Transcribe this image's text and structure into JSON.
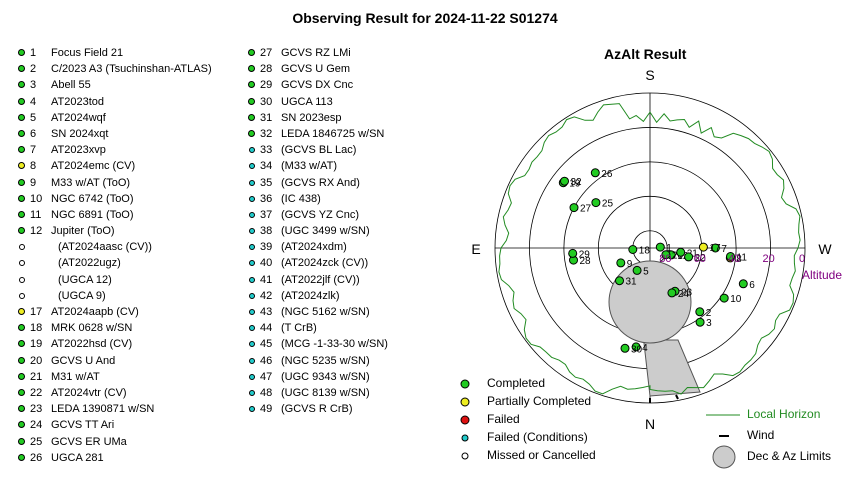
{
  "title": "Observing Result for 2024-11-22 S01274",
  "status_colors": {
    "completed": "#22cc22",
    "partial": "#eeee22",
    "failed": "#dd1111",
    "failed_conditions": "#22cccc",
    "missed": "#ffffff"
  },
  "targets_col1": [
    {
      "num": "1",
      "name": "Focus Field 21",
      "status": "completed"
    },
    {
      "num": "2",
      "name": "C/2023 A3 (Tsuchinshan-ATLAS)",
      "status": "completed"
    },
    {
      "num": "3",
      "name": "Abell 55",
      "status": "completed"
    },
    {
      "num": "4",
      "name": "AT2023tod",
      "status": "completed"
    },
    {
      "num": "5",
      "name": "AT2024wqf",
      "status": "completed"
    },
    {
      "num": "6",
      "name": "SN 2024xqt",
      "status": "completed"
    },
    {
      "num": "7",
      "name": "AT2023xvp",
      "status": "completed"
    },
    {
      "num": "8",
      "name": "AT2024emc (CV)",
      "status": "partial"
    },
    {
      "num": "9",
      "name": "M33 w/AT (ToO)",
      "status": "completed"
    },
    {
      "num": "10",
      "name": "NGC 6742 (ToO)",
      "status": "completed"
    },
    {
      "num": "11",
      "name": "NGC 6891 (ToO)",
      "status": "completed"
    },
    {
      "num": "12",
      "name": "Jupiter (ToO)",
      "status": "completed"
    },
    {
      "num": "",
      "name": "(AT2024aasc (CV))",
      "status": "missed"
    },
    {
      "num": "",
      "name": "(AT2022ugz)",
      "status": "missed"
    },
    {
      "num": "",
      "name": "(UGCA 12)",
      "status": "missed"
    },
    {
      "num": "",
      "name": "(UGCA 9)",
      "status": "missed"
    },
    {
      "num": "17",
      "name": "AT2024aapb (CV)",
      "status": "partial"
    },
    {
      "num": "18",
      "name": "MRK 0628 w/SN",
      "status": "completed"
    },
    {
      "num": "19",
      "name": "AT2022hsd (CV)",
      "status": "completed"
    },
    {
      "num": "20",
      "name": "GCVS U And",
      "status": "completed"
    },
    {
      "num": "21",
      "name": "M31 w/AT",
      "status": "completed"
    },
    {
      "num": "22",
      "name": "AT2024vtr (CV)",
      "status": "completed"
    },
    {
      "num": "23",
      "name": "LEDA 1390871 w/SN",
      "status": "completed"
    },
    {
      "num": "24",
      "name": "GCVS TT Ari",
      "status": "completed"
    },
    {
      "num": "25",
      "name": "GCVS ER UMa",
      "status": "completed"
    },
    {
      "num": "26",
      "name": "UGCA 281",
      "status": "completed"
    }
  ],
  "targets_col2": [
    {
      "num": "27",
      "name": "GCVS RZ LMi",
      "status": "completed"
    },
    {
      "num": "28",
      "name": "GCVS U Gem",
      "status": "completed"
    },
    {
      "num": "29",
      "name": "GCVS DX Cnc",
      "status": "completed"
    },
    {
      "num": "30",
      "name": "UGCA 113",
      "status": "completed"
    },
    {
      "num": "31",
      "name": "SN 2023esp",
      "status": "completed"
    },
    {
      "num": "32",
      "name": "LEDA 1846725 w/SN",
      "status": "completed"
    },
    {
      "num": "33",
      "name": "(GCVS BL Lac)",
      "status": "failed_conditions"
    },
    {
      "num": "34",
      "name": "(M33 w/AT)",
      "status": "failed_conditions"
    },
    {
      "num": "35",
      "name": "(GCVS RX And)",
      "status": "failed_conditions"
    },
    {
      "num": "36",
      "name": "(IC 438)",
      "status": "failed_conditions"
    },
    {
      "num": "37",
      "name": "(GCVS YZ Cnc)",
      "status": "failed_conditions"
    },
    {
      "num": "38",
      "name": "(UGC 3499 w/SN)",
      "status": "failed_conditions"
    },
    {
      "num": "39",
      "name": "(AT2024xdm)",
      "status": "failed_conditions"
    },
    {
      "num": "40",
      "name": "(AT2024zck (CV))",
      "status": "failed_conditions"
    },
    {
      "num": "41",
      "name": "(AT2022jlf (CV))",
      "status": "failed_conditions"
    },
    {
      "num": "42",
      "name": "(AT2024zlk)",
      "status": "failed_conditions"
    },
    {
      "num": "43",
      "name": "(NGC 5162 w/SN)",
      "status": "failed_conditions"
    },
    {
      "num": "44",
      "name": "(T CrB)",
      "status": "failed_conditions"
    },
    {
      "num": "45",
      "name": "(MCG -1-33-30 w/SN)",
      "status": "failed_conditions"
    },
    {
      "num": "46",
      "name": "(NGC 5235 w/SN)",
      "status": "failed_conditions"
    },
    {
      "num": "47",
      "name": "(UGC 9343 w/SN)",
      "status": "failed_conditions"
    },
    {
      "num": "48",
      "name": "(UGC 8139 w/SN)",
      "status": "failed_conditions"
    },
    {
      "num": "49",
      "name": "(GCVS R CrB)",
      "status": "failed_conditions"
    }
  ],
  "plot": {
    "title": "AzAlt Result",
    "compass": {
      "south": "S",
      "north": "N",
      "east": "E",
      "west": "W"
    },
    "altitude_label": "Altitude",
    "altitude_ticks": [
      "80",
      "60",
      "40",
      "20",
      "0"
    ],
    "altitude_color": "#800080",
    "horizon_color": "#228b22"
  },
  "chart_data": {
    "type": "scatter",
    "title": "AzAlt Result",
    "projection": "polar, South at top, East left, West right",
    "altitude_range": [
      0,
      90
    ],
    "points": [
      {
        "label": "1",
        "az": 265,
        "alt": 84,
        "status": "completed"
      },
      {
        "label": "2",
        "az": 322,
        "alt": 43,
        "status": "completed"
      },
      {
        "label": "3",
        "az": 326,
        "alt": 38,
        "status": "completed"
      },
      {
        "label": "4",
        "az": 8,
        "alt": 32,
        "status": "completed"
      },
      {
        "label": "5",
        "az": 30,
        "alt": 75,
        "status": "completed"
      },
      {
        "label": "6",
        "az": 291,
        "alt": 32,
        "status": "completed"
      },
      {
        "label": "7",
        "az": 270,
        "alt": 52,
        "status": "completed"
      },
      {
        "label": "8",
        "az": 277,
        "alt": 43,
        "status": "partial"
      },
      {
        "label": "9",
        "az": 63,
        "alt": 71,
        "status": "completed"
      },
      {
        "label": "10",
        "az": 304,
        "alt": 38,
        "status": "completed"
      },
      {
        "label": "11",
        "az": 276,
        "alt": 43,
        "status": "completed"
      },
      {
        "label": "12",
        "az": 288,
        "alt": 77,
        "status": "completed"
      },
      {
        "label": "17",
        "az": 269,
        "alt": 59,
        "status": "partial"
      },
      {
        "label": "18",
        "az": 85,
        "alt": 80,
        "status": "completed"
      },
      {
        "label": "19",
        "az": 127,
        "alt": 27,
        "status": "completed"
      },
      {
        "label": "20",
        "az": 293,
        "alt": 80,
        "status": "completed"
      },
      {
        "label": "21",
        "az": 278,
        "alt": 72,
        "status": "completed"
      },
      {
        "label": "22",
        "az": 283,
        "alt": 67,
        "status": "completed"
      },
      {
        "label": "23",
        "az": 330,
        "alt": 61,
        "status": "completed"
      },
      {
        "label": "24",
        "az": 334,
        "alt": 61,
        "status": "completed"
      },
      {
        "label": "25",
        "az": 130,
        "alt": 49,
        "status": "completed"
      },
      {
        "label": "26",
        "az": 144,
        "alt": 36,
        "status": "completed"
      },
      {
        "label": "27",
        "az": 118,
        "alt": 40,
        "status": "completed"
      },
      {
        "label": "28",
        "az": 81,
        "alt": 45,
        "status": "completed"
      },
      {
        "label": "29",
        "az": 86,
        "alt": 45,
        "status": "completed"
      },
      {
        "label": "30",
        "az": 14,
        "alt": 30,
        "status": "completed"
      },
      {
        "label": "31",
        "az": 43,
        "alt": 64,
        "status": "completed"
      },
      {
        "label": "32",
        "az": 128,
        "alt": 27,
        "status": "completed"
      }
    ]
  },
  "legend": [
    {
      "label": "Completed",
      "marker": "dot",
      "status": "completed"
    },
    {
      "label": "Partially Completed",
      "marker": "dot",
      "status": "partial"
    },
    {
      "label": "Failed",
      "marker": "dot",
      "status": "failed"
    },
    {
      "label": "Failed (Conditions)",
      "marker": "small-dot",
      "status": "failed_conditions"
    },
    {
      "label": "Missed or Cancelled",
      "marker": "small-dot",
      "status": "missed"
    },
    {
      "label": "Local Horizon",
      "marker": "line"
    },
    {
      "label": "Wind",
      "marker": "tick"
    },
    {
      "label": "Dec & Az Limits",
      "marker": "disc"
    }
  ]
}
